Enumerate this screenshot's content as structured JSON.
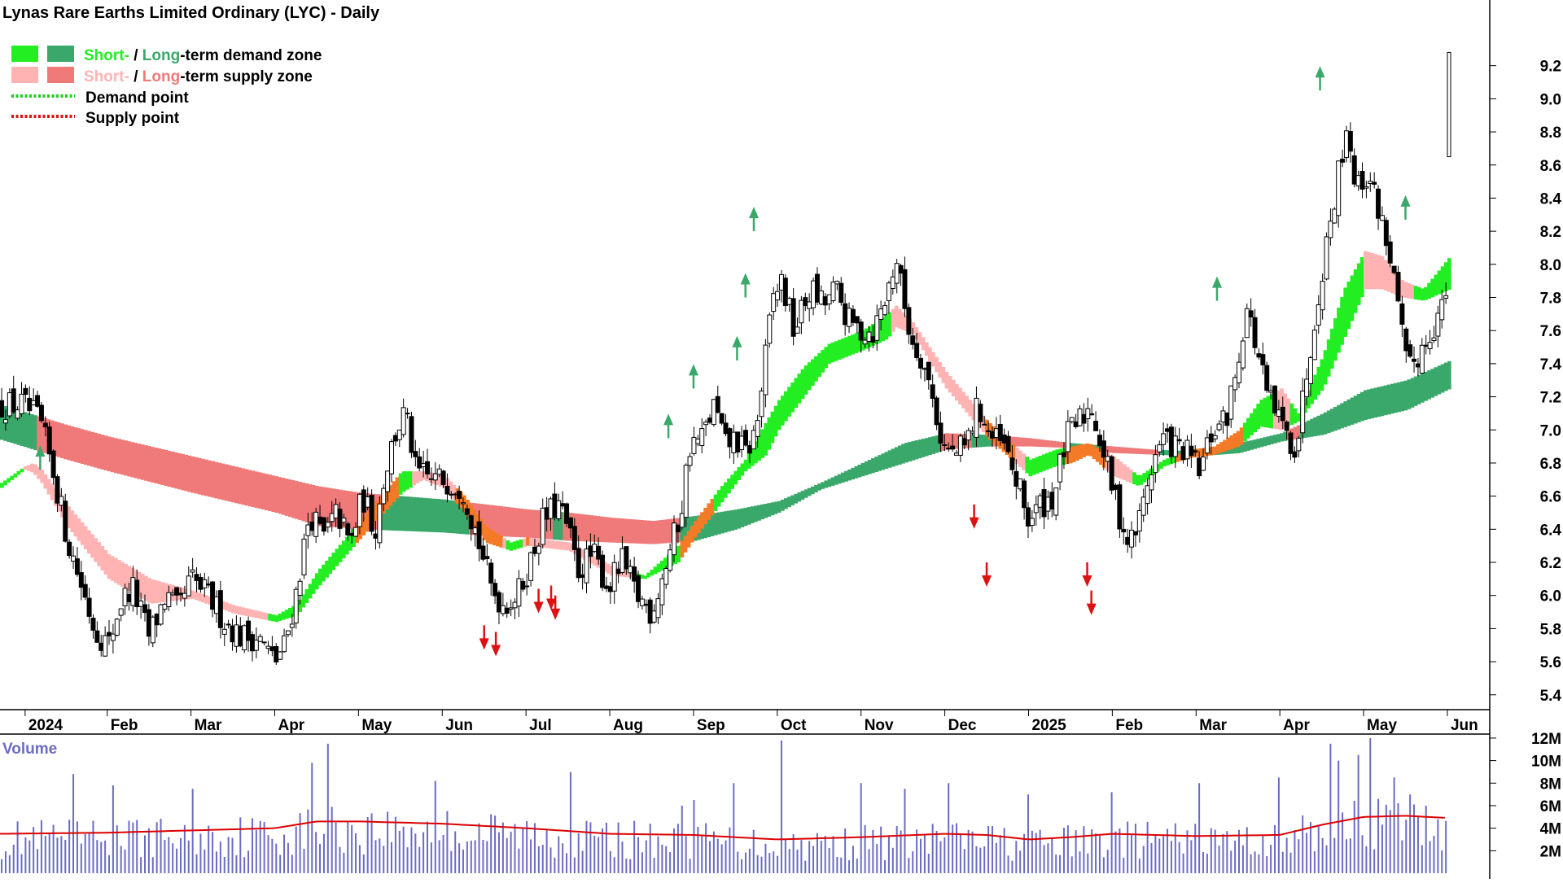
{
  "title": "Lynas Rare Earths Limited Ordinary (LYC) - Daily",
  "legend": {
    "demand_zone": {
      "short": "Short-",
      "sep": " / ",
      "long": "Long",
      "rest": "-term demand zone"
    },
    "supply_zone": {
      "short": "Short-",
      "sep": " / ",
      "long": "Long",
      "rest": "-term supply zone"
    },
    "demand_point": "Demand point",
    "supply_point": "Supply point"
  },
  "volume_label": "Volume",
  "colors": {
    "short_demand": "#22ee22",
    "long_demand": "#3aa86a",
    "short_supply": "#ffb3b3",
    "long_supply": "#f07a7a",
    "transition": "#f57a28",
    "demand_point": "#22cc22",
    "supply_point": "#dd1111",
    "volume_bar": "#6b6bc4",
    "volume_avg": "#dd0000",
    "candle": "#000000",
    "axis_text": "#000000",
    "volume_label": "#6b6bc4"
  },
  "chart_data": {
    "type": "candlestick",
    "price_axis": {
      "ticks": [
        "5.4",
        "5.6",
        "5.8",
        "6.0",
        "6.2",
        "6.4",
        "6.6",
        "6.8",
        "7.0",
        "7.2",
        "7.4",
        "7.6",
        "7.8",
        "8.0",
        "8.2",
        "8.4",
        "8.6",
        "8.8",
        "9.0",
        "9.2"
      ],
      "ylim": [
        5.33,
        9.4
      ]
    },
    "volume_axis": {
      "ticks": [
        "2M",
        "4M",
        "6M",
        "8M",
        "10M",
        "12M"
      ],
      "ylim": [
        0,
        12.5
      ]
    },
    "months": [
      {
        "label": "2024",
        "t": 0.02
      },
      {
        "label": "Feb",
        "t": 1.0
      },
      {
        "label": "Mar",
        "t": 2.0
      },
      {
        "label": "Apr",
        "t": 3.0
      },
      {
        "label": "May",
        "t": 4.0
      },
      {
        "label": "Jun",
        "t": 5.0
      },
      {
        "label": "Jul",
        "t": 6.0
      },
      {
        "label": "Aug",
        "t": 7.0
      },
      {
        "label": "Sep",
        "t": 8.0
      },
      {
        "label": "Oct",
        "t": 9.0
      },
      {
        "label": "Nov",
        "t": 10.0
      },
      {
        "label": "Dec",
        "t": 11.0
      },
      {
        "label": "2025",
        "t": 12.0
      },
      {
        "label": "Feb",
        "t": 13.0
      },
      {
        "label": "Mar",
        "t": 14.0
      },
      {
        "label": "Apr",
        "t": 15.0
      },
      {
        "label": "May",
        "t": 16.0
      },
      {
        "label": "Jun",
        "t": 17.0
      }
    ],
    "t_range": [
      -0.28,
      17.02
    ],
    "price_path": [
      [
        -0.28,
        7.15
      ],
      [
        0.0,
        7.15
      ],
      [
        0.2,
        7.05
      ],
      [
        0.38,
        6.7
      ],
      [
        0.52,
        6.35
      ],
      [
        0.7,
        6.05
      ],
      [
        0.85,
        5.8
      ],
      [
        1.02,
        5.7
      ],
      [
        1.15,
        5.95
      ],
      [
        1.3,
        6.05
      ],
      [
        1.5,
        5.75
      ],
      [
        1.7,
        6.0
      ],
      [
        1.85,
        5.9
      ],
      [
        2.0,
        6.1
      ],
      [
        2.2,
        6.0
      ],
      [
        2.4,
        5.85
      ],
      [
        2.6,
        5.75
      ],
      [
        2.8,
        5.75
      ],
      [
        3.0,
        5.6
      ],
      [
        3.12,
        5.7
      ],
      [
        3.25,
        6.0
      ],
      [
        3.42,
        6.5
      ],
      [
        3.58,
        6.35
      ],
      [
        3.75,
        6.5
      ],
      [
        3.9,
        6.3
      ],
      [
        4.05,
        6.6
      ],
      [
        4.2,
        6.4
      ],
      [
        4.3,
        6.7
      ],
      [
        4.42,
        6.95
      ],
      [
        4.55,
        7.1
      ],
      [
        4.62,
        6.95
      ],
      [
        4.68,
        6.75
      ],
      [
        4.85,
        6.7
      ],
      [
        5.05,
        6.7
      ],
      [
        5.25,
        6.65
      ],
      [
        5.45,
        6.3
      ],
      [
        5.58,
        6.05
      ],
      [
        5.72,
        5.95
      ],
      [
        5.9,
        6.0
      ],
      [
        6.05,
        6.2
      ],
      [
        6.2,
        6.45
      ],
      [
        6.38,
        6.55
      ],
      [
        6.5,
        6.4
      ],
      [
        6.62,
        6.15
      ],
      [
        6.8,
        6.25
      ],
      [
        6.98,
        6.05
      ],
      [
        7.15,
        6.2
      ],
      [
        7.32,
        6.0
      ],
      [
        7.5,
        5.9
      ],
      [
        7.65,
        6.15
      ],
      [
        7.85,
        6.5
      ],
      [
        7.95,
        6.9
      ],
      [
        8.1,
        6.95
      ],
      [
        8.25,
        7.15
      ],
      [
        8.38,
        6.9
      ],
      [
        8.5,
        6.95
      ],
      [
        8.62,
        6.85
      ],
      [
        8.75,
        7.0
      ],
      [
        8.85,
        7.4
      ],
      [
        8.95,
        7.8
      ],
      [
        9.05,
        7.9
      ],
      [
        9.2,
        7.6
      ],
      [
        9.4,
        7.85
      ],
      [
        9.55,
        7.75
      ],
      [
        9.7,
        7.85
      ],
      [
        9.85,
        7.65
      ],
      [
        10.0,
        7.6
      ],
      [
        10.15,
        7.6
      ],
      [
        10.3,
        7.8
      ],
      [
        10.42,
        8.05
      ],
      [
        10.5,
        7.8
      ],
      [
        10.6,
        7.55
      ],
      [
        10.72,
        7.45
      ],
      [
        10.85,
        7.2
      ],
      [
        10.98,
        6.9
      ],
      [
        11.1,
        6.85
      ],
      [
        11.25,
        6.9
      ],
      [
        11.4,
        7.15
      ],
      [
        11.55,
        6.95
      ],
      [
        11.7,
        6.9
      ],
      [
        11.85,
        6.7
      ],
      [
        12.0,
        6.45
      ],
      [
        12.15,
        6.55
      ],
      [
        12.3,
        6.6
      ],
      [
        12.45,
        6.95
      ],
      [
        12.6,
        7.05
      ],
      [
        12.75,
        7.15
      ],
      [
        12.9,
        6.85
      ],
      [
        13.05,
        6.55
      ],
      [
        13.2,
        6.3
      ],
      [
        13.32,
        6.45
      ],
      [
        13.45,
        6.75
      ],
      [
        13.6,
        6.95
      ],
      [
        13.75,
        6.9
      ],
      [
        13.9,
        6.85
      ],
      [
        14.05,
        6.75
      ],
      [
        14.2,
        7.0
      ],
      [
        14.35,
        7.05
      ],
      [
        14.48,
        7.35
      ],
      [
        14.6,
        7.75
      ],
      [
        14.72,
        7.5
      ],
      [
        14.85,
        7.2
      ],
      [
        15.0,
        7.05
      ],
      [
        15.1,
        6.95
      ],
      [
        15.2,
        6.9
      ],
      [
        15.32,
        7.35
      ],
      [
        15.45,
        7.8
      ],
      [
        15.55,
        8.1
      ],
      [
        15.68,
        8.5
      ],
      [
        15.8,
        8.85
      ],
      [
        15.92,
        8.45
      ],
      [
        16.05,
        8.55
      ],
      [
        16.2,
        8.3
      ],
      [
        16.32,
        8.05
      ],
      [
        16.42,
        7.7
      ],
      [
        16.52,
        7.35
      ],
      [
        16.65,
        7.45
      ],
      [
        16.8,
        7.6
      ],
      [
        16.95,
        7.75
      ],
      [
        17.02,
        7.9
      ]
    ],
    "last_bar": {
      "t": 17.02,
      "open": 8.65,
      "high": 9.28,
      "low": 8.65,
      "close": 9.28
    },
    "long_zone": [
      [
        -0.28,
        7.15,
        6.94
      ],
      [
        0.5,
        7.03,
        6.82
      ],
      [
        1.0,
        6.96,
        6.75
      ],
      [
        2.0,
        6.84,
        6.62
      ],
      [
        3.0,
        6.72,
        6.5
      ],
      [
        3.5,
        6.66,
        6.42
      ],
      [
        4.0,
        6.62,
        6.4
      ],
      [
        4.5,
        6.6,
        6.39
      ],
      [
        5.0,
        6.58,
        6.38
      ],
      [
        5.5,
        6.55,
        6.36
      ],
      [
        6.0,
        6.52,
        6.35
      ],
      [
        6.5,
        6.5,
        6.33
      ],
      [
        7.0,
        6.47,
        6.32
      ],
      [
        7.5,
        6.45,
        6.31
      ],
      [
        8.0,
        6.48,
        6.33
      ],
      [
        8.5,
        6.52,
        6.4
      ],
      [
        9.0,
        6.57,
        6.5
      ],
      [
        9.5,
        6.68,
        6.64
      ],
      [
        10.0,
        6.8,
        6.72
      ],
      [
        10.5,
        6.92,
        6.8
      ],
      [
        11.0,
        6.98,
        6.88
      ],
      [
        11.5,
        6.97,
        6.9
      ],
      [
        12.0,
        6.95,
        6.9
      ],
      [
        12.5,
        6.92,
        6.89
      ],
      [
        13.0,
        6.9,
        6.86
      ],
      [
        13.5,
        6.88,
        6.85
      ],
      [
        14.0,
        6.87,
        6.84
      ],
      [
        14.5,
        6.92,
        6.86
      ],
      [
        15.0,
        6.98,
        6.93
      ],
      [
        15.5,
        7.1,
        6.97
      ],
      [
        16.0,
        7.24,
        7.06
      ],
      [
        16.5,
        7.3,
        7.12
      ],
      [
        17.02,
        7.42,
        7.25
      ]
    ],
    "short_zone": [
      [
        -0.28,
        6.68,
        6.65
      ],
      [
        0.0,
        6.78,
        6.76
      ],
      [
        0.1,
        6.8,
        6.74
      ],
      [
        0.2,
        6.76,
        6.68
      ],
      [
        0.5,
        6.55,
        6.42
      ],
      [
        1.0,
        6.25,
        6.1
      ],
      [
        1.5,
        6.1,
        5.95
      ],
      [
        2.0,
        6.03,
        5.98
      ],
      [
        2.5,
        5.94,
        5.89
      ],
      [
        3.0,
        5.88,
        5.84
      ],
      [
        3.25,
        5.95,
        5.88
      ],
      [
        3.5,
        6.15,
        6.05
      ],
      [
        4.0,
        6.45,
        6.34
      ],
      [
        4.5,
        6.75,
        6.62
      ],
      [
        4.75,
        6.75,
        6.7
      ],
      [
        5.0,
        6.73,
        6.65
      ],
      [
        5.25,
        6.6,
        6.5
      ],
      [
        5.5,
        6.42,
        6.32
      ],
      [
        5.8,
        6.32,
        6.27
      ],
      [
        6.0,
        6.35,
        6.3
      ],
      [
        6.5,
        6.32,
        6.27
      ],
      [
        7.0,
        6.18,
        6.12
      ],
      [
        7.4,
        6.12,
        6.1
      ],
      [
        7.8,
        6.3,
        6.2
      ],
      [
        8.0,
        6.45,
        6.35
      ],
      [
        8.3,
        6.65,
        6.55
      ],
      [
        8.6,
        6.82,
        6.75
      ],
      [
        8.85,
        7.05,
        6.85
      ],
      [
        9.0,
        7.18,
        7.0
      ],
      [
        9.3,
        7.38,
        7.2
      ],
      [
        9.6,
        7.52,
        7.4
      ],
      [
        10.0,
        7.6,
        7.48
      ],
      [
        10.3,
        7.7,
        7.55
      ],
      [
        10.4,
        7.75,
        7.62
      ],
      [
        10.6,
        7.65,
        7.58
      ],
      [
        11.0,
        7.35,
        7.25
      ],
      [
        11.5,
        7.05,
        6.95
      ],
      [
        12.0,
        6.82,
        6.72
      ],
      [
        12.3,
        6.88,
        6.78
      ],
      [
        12.5,
        6.9,
        6.8
      ],
      [
        12.7,
        6.92,
        6.85
      ],
      [
        13.0,
        6.84,
        6.72
      ],
      [
        13.3,
        6.72,
        6.66
      ],
      [
        13.6,
        6.82,
        6.78
      ],
      [
        13.9,
        6.88,
        6.83
      ],
      [
        14.2,
        6.9,
        6.85
      ],
      [
        14.5,
        7.0,
        6.9
      ],
      [
        14.75,
        7.18,
        7.02
      ],
      [
        15.0,
        7.25,
        7.0
      ],
      [
        15.2,
        7.1,
        7.05
      ],
      [
        15.5,
        7.45,
        7.25
      ],
      [
        15.75,
        7.85,
        7.55
      ],
      [
        16.0,
        8.08,
        7.85
      ],
      [
        16.2,
        8.05,
        7.85
      ],
      [
        16.45,
        7.9,
        7.8
      ],
      [
        16.7,
        7.85,
        7.78
      ],
      [
        17.02,
        8.05,
        7.85
      ]
    ],
    "demand_points": [
      {
        "t": 0.2,
        "price": 6.76
      },
      {
        "t": 7.7,
        "price": 6.95
      },
      {
        "t": 8.0,
        "price": 7.25
      },
      {
        "t": 8.52,
        "price": 7.42
      },
      {
        "t": 8.62,
        "price": 7.8
      },
      {
        "t": 8.72,
        "price": 8.2
      },
      {
        "t": 14.25,
        "price": 7.78
      },
      {
        "t": 15.48,
        "price": 9.05
      },
      {
        "t": 16.5,
        "price": 8.27
      }
    ],
    "supply_points": [
      {
        "t": 5.5,
        "price": 5.82
      },
      {
        "t": 5.64,
        "price": 5.78
      },
      {
        "t": 6.15,
        "price": 6.04
      },
      {
        "t": 6.3,
        "price": 6.06
      },
      {
        "t": 6.35,
        "price": 6.0
      },
      {
        "t": 11.35,
        "price": 6.55
      },
      {
        "t": 11.5,
        "price": 6.2
      },
      {
        "t": 12.7,
        "price": 6.2
      },
      {
        "t": 12.75,
        "price": 6.03
      }
    ],
    "volume_avg_path": [
      [
        -0.28,
        3.5
      ],
      [
        1.0,
        3.6
      ],
      [
        2.0,
        3.8
      ],
      [
        3.0,
        4.0
      ],
      [
        3.5,
        4.6
      ],
      [
        4.0,
        4.6
      ],
      [
        5.0,
        4.4
      ],
      [
        6.0,
        4.0
      ],
      [
        7.0,
        3.5
      ],
      [
        8.0,
        3.4
      ],
      [
        9.0,
        3.0
      ],
      [
        10.0,
        3.2
      ],
      [
        11.0,
        3.5
      ],
      [
        11.5,
        3.4
      ],
      [
        12.0,
        3.0
      ],
      [
        12.5,
        3.2
      ],
      [
        13.0,
        3.5
      ],
      [
        14.0,
        3.3
      ],
      [
        15.0,
        3.4
      ],
      [
        15.5,
        4.3
      ],
      [
        16.0,
        5.0
      ],
      [
        16.5,
        5.1
      ],
      [
        17.02,
        4.9
      ]
    ],
    "volume_spikes": [
      [
        0.6,
        8.8
      ],
      [
        1.05,
        7.8
      ],
      [
        2.0,
        7.5
      ],
      [
        3.45,
        9.8
      ],
      [
        3.62,
        11.5
      ],
      [
        4.9,
        8.2
      ],
      [
        6.55,
        9.0
      ],
      [
        7.85,
        6.0
      ],
      [
        8.0,
        6.5
      ],
      [
        8.5,
        8.0
      ],
      [
        9.05,
        11.8
      ],
      [
        10.0,
        8.0
      ],
      [
        10.5,
        7.5
      ],
      [
        11.05,
        8.0
      ],
      [
        12.0,
        7.0
      ],
      [
        13.0,
        7.2
      ],
      [
        14.05,
        8.0
      ],
      [
        15.0,
        8.5
      ],
      [
        15.6,
        11.5
      ],
      [
        15.72,
        10.0
      ],
      [
        15.95,
        10.5
      ],
      [
        16.1,
        12.0
      ],
      [
        16.35,
        8.5
      ],
      [
        16.55,
        7.0
      ],
      [
        16.75,
        6.0
      ],
      [
        17.02,
        9.5
      ]
    ]
  }
}
